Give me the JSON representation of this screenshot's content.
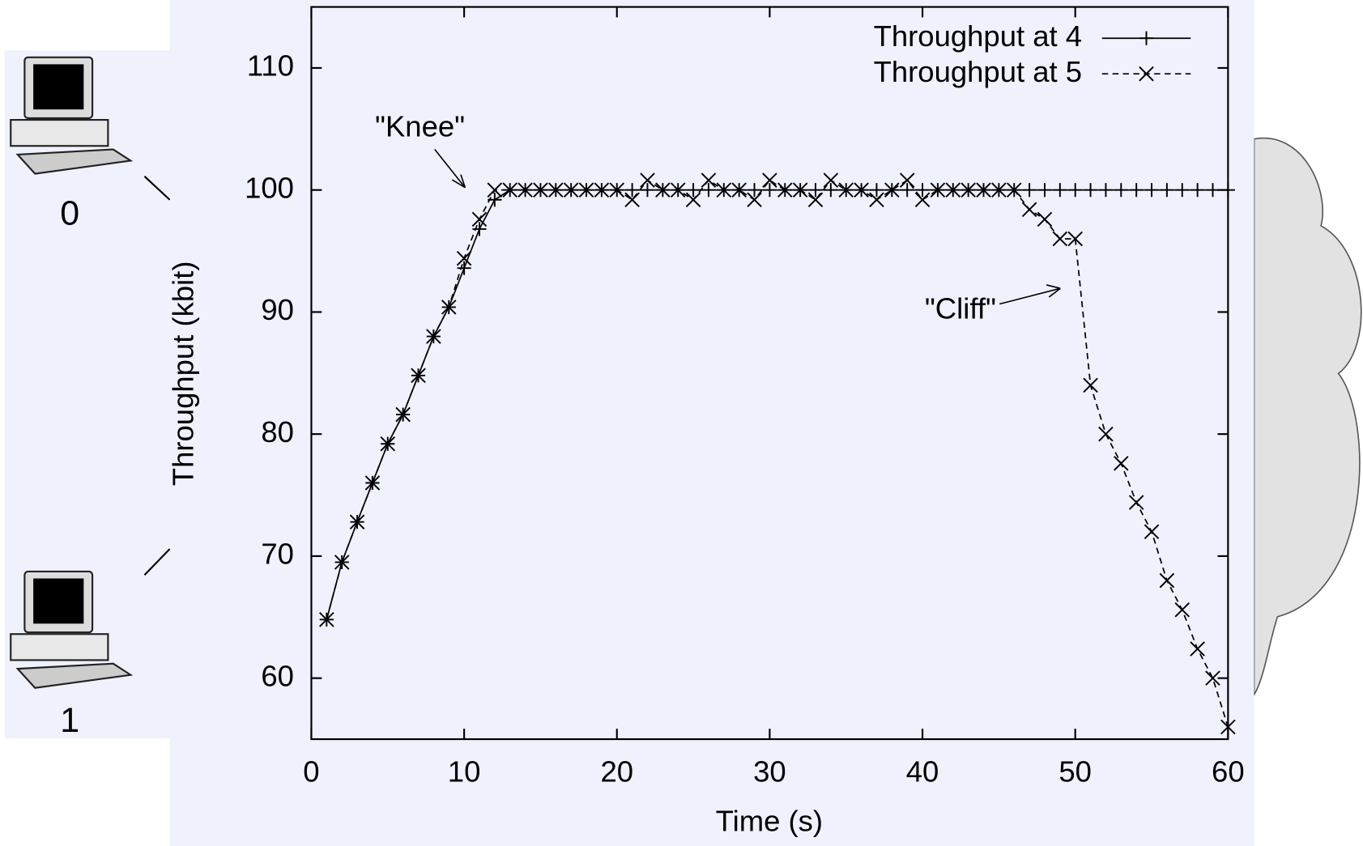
{
  "nodes": [
    {
      "label": "0"
    },
    {
      "label": "1"
    }
  ],
  "chart_data": {
    "type": "line",
    "x_label": "Time (s)",
    "y_label": "Throughput (kbit)",
    "x": [
      1,
      2,
      3,
      4,
      5,
      6,
      7,
      8,
      9,
      10,
      11,
      12,
      13,
      14,
      15,
      16,
      17,
      18,
      19,
      20,
      21,
      22,
      23,
      24,
      25,
      26,
      27,
      28,
      29,
      30,
      31,
      32,
      33,
      34,
      35,
      36,
      37,
      38,
      39,
      40,
      41,
      42,
      43,
      44,
      45,
      46,
      47,
      48,
      49,
      50,
      51,
      52,
      53,
      54,
      55,
      56,
      57,
      58,
      59,
      60
    ],
    "series": [
      {
        "name": "Throughput at 4",
        "color": "#000000",
        "line_style": "solid",
        "marker": "plus",
        "values": [
          64.8,
          69.5,
          72.8,
          76,
          79.2,
          81.6,
          84.8,
          88,
          90.4,
          93.6,
          96.8,
          99.2,
          100,
          100,
          100,
          100,
          100,
          100,
          100,
          100,
          100,
          100,
          100,
          100,
          100,
          100,
          100,
          100,
          100,
          100,
          100,
          100,
          100,
          100,
          100,
          100,
          100,
          100,
          100,
          100,
          100,
          100,
          100,
          100,
          100,
          100,
          100,
          100,
          100,
          100,
          100,
          100,
          100,
          100,
          100,
          100,
          100,
          100,
          100,
          100
        ]
      },
      {
        "name": "Throughput at 5",
        "color": "#000000",
        "line_style": "dashed",
        "marker": "cross",
        "values": [
          64.8,
          69.5,
          72.8,
          76,
          79.2,
          81.6,
          84.8,
          88,
          90.4,
          94.4,
          97.6,
          100,
          100,
          100,
          100,
          100,
          100,
          100,
          100,
          100,
          99.2,
          100.8,
          100,
          100,
          99.2,
          100.8,
          100,
          100,
          99.2,
          100.8,
          100,
          100,
          99.2,
          100.8,
          100,
          100,
          99.2,
          100,
          100.8,
          99.2,
          100,
          100,
          100,
          100,
          100,
          100,
          98.4,
          97.6,
          96,
          96,
          84,
          80,
          77.6,
          74.4,
          72,
          68,
          65.6,
          62.4,
          60,
          56
        ]
      }
    ],
    "annotations": [
      {
        "text": "\"Knee\""
      },
      {
        "text": "\"Cliff\""
      }
    ],
    "xlim": [
      0,
      60
    ],
    "xticks": [
      0,
      10,
      20,
      30,
      40,
      50,
      60
    ],
    "ylim": [
      55,
      115
    ],
    "yticks": [
      60,
      70,
      80,
      90,
      100,
      110
    ],
    "legend": "top-right"
  }
}
